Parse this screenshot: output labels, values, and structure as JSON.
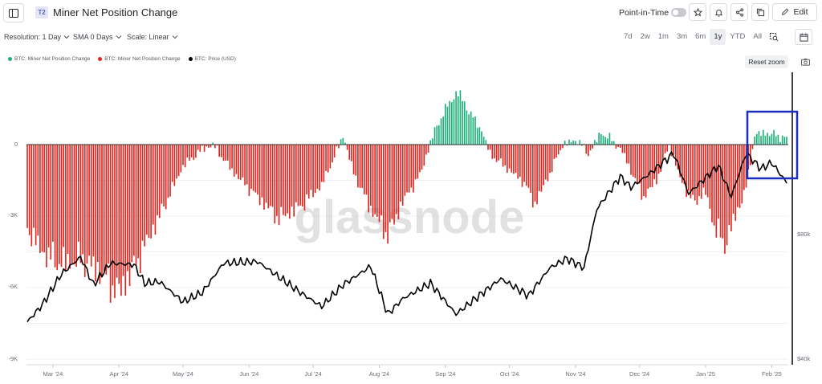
{
  "header": {
    "tier_badge": "T2",
    "title": "Miner Net Position Change",
    "point_in_time_label": "Point-in-Time",
    "edit_label": "Edit",
    "icons": [
      "sidebar-toggle-icon",
      "star-icon",
      "bell-icon",
      "share-icon",
      "copy-icon",
      "pencil-icon"
    ]
  },
  "options": {
    "resolution": "Resolution: 1 Day",
    "sma": "SMA 0 Days",
    "scale": "Scale: Linear"
  },
  "ranges": [
    "7d",
    "2w",
    "1m",
    "3m",
    "6m",
    "1y",
    "YTD",
    "All"
  ],
  "active_range": "1y",
  "legend": [
    {
      "label": "BTC: Miner Net Position Change",
      "color": "#1fae7a"
    },
    {
      "label": "BTC: Miner Net Position Change",
      "color": "#e0261f"
    },
    {
      "label": "BTC: Price (USD)",
      "color": "#000000"
    }
  ],
  "reset_zoom": "Reset zoom",
  "watermark": "glassnode",
  "chart_data": {
    "type": "bar",
    "y_axis": {
      "ticks": [
        "0",
        "-3K",
        "-6K",
        "-9K"
      ],
      "ylim": [
        -9000,
        3000
      ]
    },
    "y2_axis": {
      "ticks": [
        "$80k",
        "$40k"
      ]
    },
    "x_axis": {
      "ticks": [
        "Mar '24",
        "Apr '24",
        "May '24",
        "Jun '24",
        "Jul '24",
        "Aug '24",
        "Sep '24",
        "Oct '24",
        "Nov '24",
        "Dec '24",
        "Jan '25",
        "Feb '25"
      ]
    },
    "position_change_anchors": [
      [
        "2024-02-18",
        -3500
      ],
      [
        "2024-02-25",
        -4500
      ],
      [
        "2024-03-05",
        -5000
      ],
      [
        "2024-03-15",
        -4800
      ],
      [
        "2024-03-25",
        -5500
      ],
      [
        "2024-04-01",
        -6200
      ],
      [
        "2024-04-10",
        -4800
      ],
      [
        "2024-04-20",
        -3000
      ],
      [
        "2024-05-01",
        -900
      ],
      [
        "2024-05-10",
        -200
      ],
      [
        "2024-05-15",
        0
      ],
      [
        "2024-05-25",
        -1200
      ],
      [
        "2024-06-05",
        -2200
      ],
      [
        "2024-06-15",
        -3100
      ],
      [
        "2024-06-25",
        -2600
      ],
      [
        "2024-07-05",
        -1700
      ],
      [
        "2024-07-12",
        -300
      ],
      [
        "2024-07-15",
        400
      ],
      [
        "2024-07-20",
        -1200
      ],
      [
        "2024-07-28",
        -2700
      ],
      [
        "2024-08-05",
        -3800
      ],
      [
        "2024-08-12",
        -2400
      ],
      [
        "2024-08-20",
        -1300
      ],
      [
        "2024-08-27",
        600
      ],
      [
        "2024-09-03",
        1800
      ],
      [
        "2024-09-07",
        2200
      ],
      [
        "2024-09-12",
        1400
      ],
      [
        "2024-09-18",
        600
      ],
      [
        "2024-09-22",
        -400
      ],
      [
        "2024-09-30",
        -1000
      ],
      [
        "2024-10-08",
        -1600
      ],
      [
        "2024-10-13",
        -2500
      ],
      [
        "2024-10-20",
        -1200
      ],
      [
        "2024-10-26",
        0
      ],
      [
        "2024-11-02",
        200
      ],
      [
        "2024-11-07",
        -400
      ],
      [
        "2024-11-13",
        500
      ],
      [
        "2024-11-18",
        200
      ],
      [
        "2024-11-23",
        -300
      ],
      [
        "2024-11-28",
        -1300
      ],
      [
        "2024-12-03",
        -2200
      ],
      [
        "2024-12-09",
        -1500
      ],
      [
        "2024-12-15",
        0
      ],
      [
        "2024-12-20",
        -1400
      ],
      [
        "2024-12-26",
        -2400
      ],
      [
        "2025-01-01",
        -2000
      ],
      [
        "2025-01-05",
        -3400
      ],
      [
        "2025-01-10",
        -4200
      ],
      [
        "2025-01-15",
        -3000
      ],
      [
        "2025-01-20",
        -1800
      ],
      [
        "2025-01-24",
        400
      ],
      [
        "2025-01-29",
        500
      ],
      [
        "2025-02-03",
        400
      ],
      [
        "2025-02-06",
        300
      ]
    ],
    "price_anchors": [
      [
        "2024-02-18",
        51500
      ],
      [
        "2024-02-25",
        57000
      ],
      [
        "2024-03-05",
        67000
      ],
      [
        "2024-03-14",
        72500
      ],
      [
        "2024-03-20",
        63500
      ],
      [
        "2024-03-28",
        70500
      ],
      [
        "2024-04-08",
        70000
      ],
      [
        "2024-04-13",
        64000
      ],
      [
        "2024-04-20",
        64500
      ],
      [
        "2024-05-01",
        58000
      ],
      [
        "2024-05-10",
        61000
      ],
      [
        "2024-05-20",
        70500
      ],
      [
        "2024-06-05",
        71000
      ],
      [
        "2024-06-15",
        66000
      ],
      [
        "2024-06-25",
        61000
      ],
      [
        "2024-07-05",
        56500
      ],
      [
        "2024-07-15",
        63500
      ],
      [
        "2024-07-28",
        69500
      ],
      [
        "2024-08-05",
        54000
      ],
      [
        "2024-08-12",
        59000
      ],
      [
        "2024-08-25",
        64000
      ],
      [
        "2024-09-06",
        54000
      ],
      [
        "2024-09-15",
        59000
      ],
      [
        "2024-09-27",
        65500
      ],
      [
        "2024-10-10",
        60000
      ],
      [
        "2024-10-20",
        69000
      ],
      [
        "2024-10-28",
        72000
      ],
      [
        "2024-11-05",
        69000
      ],
      [
        "2024-11-11",
        88000
      ],
      [
        "2024-11-22",
        98500
      ],
      [
        "2024-11-27",
        95000
      ],
      [
        "2024-12-05",
        99000
      ],
      [
        "2024-12-17",
        106000
      ],
      [
        "2024-12-24",
        93000
      ],
      [
        "2025-01-07",
        102000
      ],
      [
        "2025-01-13",
        92000
      ],
      [
        "2025-01-20",
        106000
      ],
      [
        "2025-01-27",
        101000
      ],
      [
        "2025-02-01",
        103000
      ],
      [
        "2025-02-08",
        96500
      ]
    ],
    "highlight_box_color": "#1a2dbf",
    "colors": {
      "positive": "#1fae7a",
      "negative": "#e0261f",
      "price": "#000000"
    }
  }
}
